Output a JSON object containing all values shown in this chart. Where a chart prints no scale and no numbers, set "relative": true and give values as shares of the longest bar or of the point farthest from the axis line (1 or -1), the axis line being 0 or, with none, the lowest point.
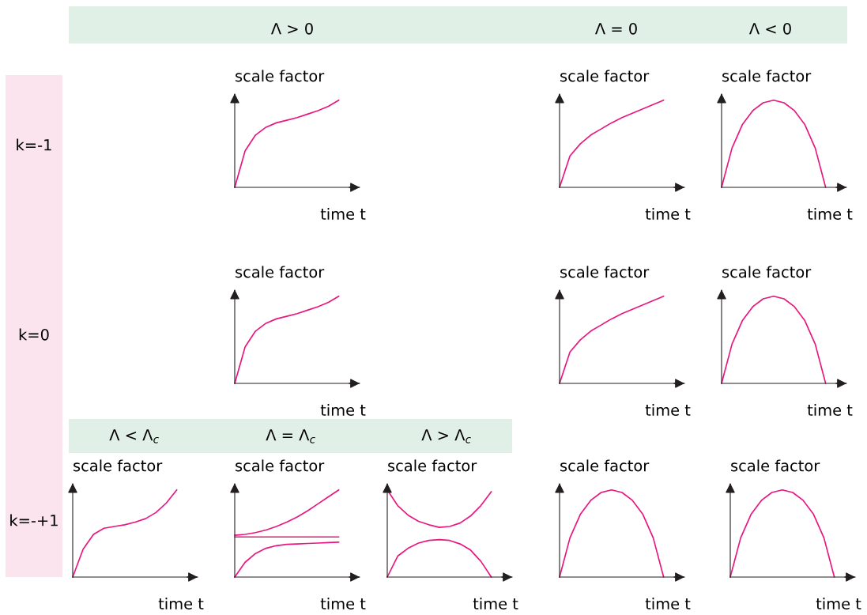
{
  "chart_data": [
    {
      "type": "other",
      "annotations": [
        "Λ > 0",
        "Λ = 0",
        "Λ < 0",
        "k=-1",
        "k=0",
        "k=-+1",
        "Λ < Λ$_{c}$",
        "Λ = Λ$_{c}$",
        "Λ > Λ$_{c}$"
      ]
    },
    {
      "type": "line",
      "relative": true,
      "xlabel": "time t",
      "ylabel": "scale factor",
      "categories": [
        null,
        null,
        null,
        null,
        null,
        null,
        null,
        null,
        null,
        null,
        null
      ],
      "series": [
        {
          "color": "#e8177f",
          "values": [
            0,
            0.42,
            0.6,
            0.69,
            0.74,
            0.77,
            0.8,
            0.84,
            0.88,
            0.93,
            1.0
          ]
        }
      ]
    },
    {
      "type": "line",
      "relative": true,
      "xlabel": "time t",
      "ylabel": "scale factor",
      "categories": [
        null,
        null,
        null,
        null,
        null,
        null,
        null,
        null,
        null,
        null,
        null
      ],
      "series": [
        {
          "color": "#e8177f",
          "values": [
            0,
            0.36,
            0.5,
            0.6,
            0.67,
            0.74,
            0.8,
            0.85,
            0.9,
            0.95,
            1.0
          ]
        }
      ]
    },
    {
      "type": "line",
      "relative": true,
      "xlabel": "time t",
      "ylabel": "scale factor",
      "categories": [
        null,
        null,
        null,
        null,
        null,
        null,
        null,
        null,
        null,
        null,
        null
      ],
      "series": [
        {
          "color": "#e8177f",
          "values": [
            0,
            0.45,
            0.72,
            0.88,
            0.97,
            1.0,
            0.97,
            0.88,
            0.72,
            0.45,
            0
          ]
        }
      ]
    },
    {
      "type": "line",
      "relative": true,
      "xlabel": "time t",
      "ylabel": "scale factor",
      "categories": [
        null,
        null,
        null,
        null,
        null,
        null,
        null,
        null,
        null,
        null,
        null
      ],
      "series": [
        {
          "color": "#e8177f",
          "values": [
            0,
            0.42,
            0.6,
            0.69,
            0.74,
            0.77,
            0.8,
            0.84,
            0.88,
            0.93,
            1.0
          ]
        }
      ]
    },
    {
      "type": "line",
      "relative": true,
      "xlabel": "time t",
      "ylabel": "scale factor",
      "categories": [
        null,
        null,
        null,
        null,
        null,
        null,
        null,
        null,
        null,
        null,
        null
      ],
      "series": [
        {
          "color": "#e8177f",
          "values": [
            0,
            0.36,
            0.5,
            0.6,
            0.67,
            0.74,
            0.8,
            0.85,
            0.9,
            0.95,
            1.0
          ]
        }
      ]
    },
    {
      "type": "line",
      "relative": true,
      "xlabel": "time t",
      "ylabel": "scale factor",
      "categories": [
        null,
        null,
        null,
        null,
        null,
        null,
        null,
        null,
        null,
        null,
        null
      ],
      "series": [
        {
          "color": "#e8177f",
          "values": [
            0,
            0.45,
            0.72,
            0.88,
            0.97,
            1.0,
            0.97,
            0.88,
            0.72,
            0.45,
            0
          ]
        }
      ]
    },
    {
      "type": "line",
      "relative": true,
      "xlabel": "time t",
      "ylabel": "scale factor",
      "categories": [
        null,
        null,
        null,
        null,
        null,
        null,
        null,
        null,
        null,
        null,
        null
      ],
      "series": [
        {
          "color": "#e8177f",
          "values": [
            0,
            0.32,
            0.49,
            0.56,
            0.58,
            0.6,
            0.63,
            0.67,
            0.74,
            0.85,
            1.0
          ]
        }
      ]
    },
    {
      "type": "line",
      "relative": true,
      "xlabel": "time t",
      "ylabel": "scale factor",
      "categories": [
        null,
        null,
        null,
        null,
        null,
        null,
        null,
        null,
        null,
        null,
        null
      ],
      "series": [
        {
          "color": "#e8177f",
          "values": [
            0.48,
            0.49,
            0.51,
            0.54,
            0.58,
            0.63,
            0.69,
            0.76,
            0.84,
            0.92,
            1.0
          ]
        },
        {
          "color": "#e8177f",
          "values": [
            0.46,
            0.46,
            0.46,
            0.46,
            0.46,
            0.46,
            0.46,
            0.46,
            0.46,
            0.46,
            0.46
          ]
        },
        {
          "color": "#e8177f",
          "values": [
            0,
            0.17,
            0.27,
            0.33,
            0.36,
            0.375,
            0.38,
            0.385,
            0.39,
            0.395,
            0.4
          ]
        }
      ]
    },
    {
      "type": "line",
      "relative": true,
      "xlabel": "time t",
      "ylabel": "scale factor",
      "categories": [
        null,
        null,
        null,
        null,
        null,
        null,
        null,
        null,
        null,
        null,
        null
      ],
      "series": [
        {
          "color": "#e8177f",
          "values": [
            1.0,
            0.82,
            0.71,
            0.64,
            0.6,
            0.57,
            0.58,
            0.62,
            0.7,
            0.82,
            0.98
          ]
        },
        {
          "color": "#e8177f",
          "values": [
            0,
            0.24,
            0.33,
            0.39,
            0.42,
            0.43,
            0.42,
            0.38,
            0.31,
            0.18,
            0
          ]
        }
      ]
    },
    {
      "type": "line",
      "relative": true,
      "xlabel": "time t",
      "ylabel": "scale factor",
      "categories": [
        null,
        null,
        null,
        null,
        null,
        null,
        null,
        null,
        null,
        null,
        null
      ],
      "series": [
        {
          "color": "#e8177f",
          "values": [
            0,
            0.45,
            0.72,
            0.88,
            0.97,
            1.0,
            0.97,
            0.88,
            0.72,
            0.45,
            0
          ]
        }
      ]
    },
    {
      "type": "line",
      "relative": true,
      "xlabel": "time t",
      "ylabel": "scale factor",
      "categories": [
        null,
        null,
        null,
        null,
        null,
        null,
        null,
        null,
        null,
        null,
        null
      ],
      "series": [
        {
          "color": "#e8177f",
          "values": [
            0,
            0.45,
            0.72,
            0.88,
            0.97,
            1.0,
            0.97,
            0.88,
            0.72,
            0.45,
            0
          ]
        }
      ]
    }
  ]
}
